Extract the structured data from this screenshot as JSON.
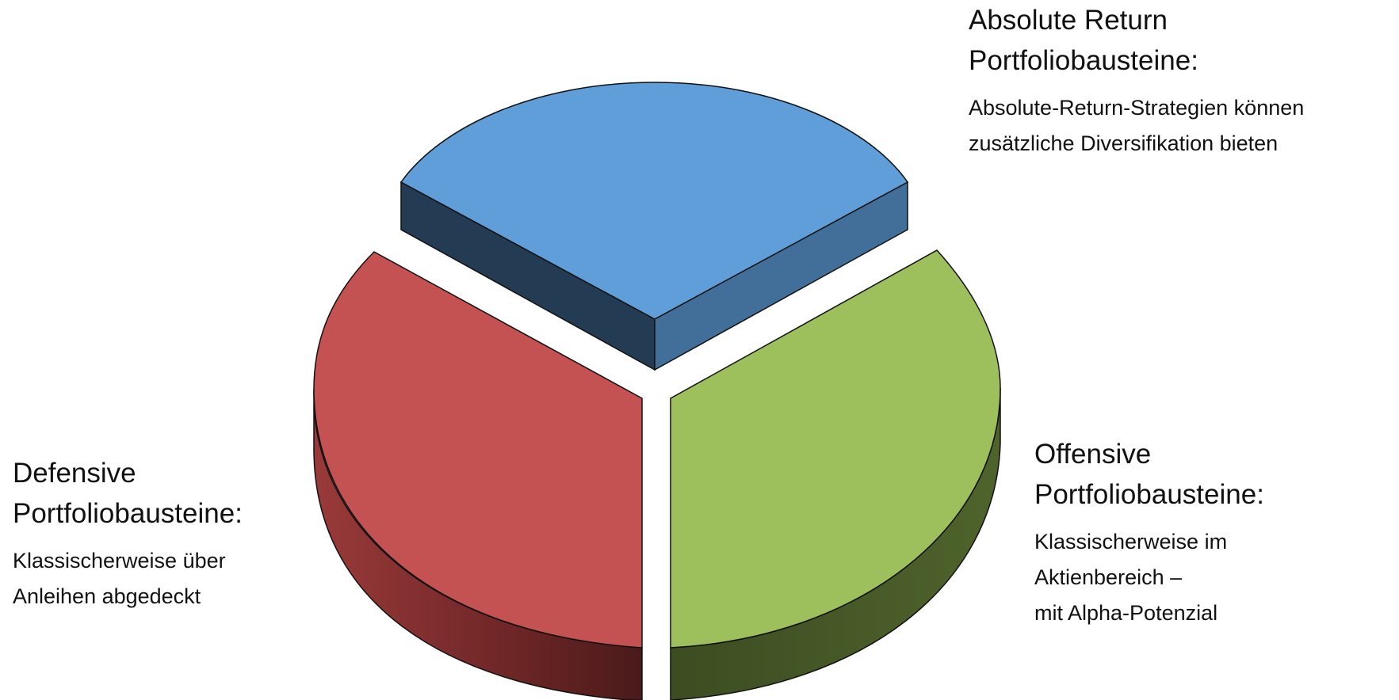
{
  "segments": [
    {
      "key": "absolute",
      "title_line1": "Absolute Return",
      "title_line2": "Portfoliobausteine:",
      "desc_line1": "Absolute-Return-Strategien können",
      "desc_line2": "zusätzliche Diversifikation bieten",
      "desc_line3": "",
      "color_top": "#5f9ed8",
      "color_side": "#426f9a",
      "color_side_dark": "#233c54"
    },
    {
      "key": "offensive",
      "title_line1": "Offensive",
      "title_line2": "Portfoliobausteine:",
      "desc_line1": "Klassischerweise im",
      "desc_line2": "Aktienbereich –",
      "desc_line3": "mit Alpha-Potenzial",
      "color_top": "#9dbf5c",
      "color_side": "#4c5f2a",
      "color_side_dark": "#384a1e"
    },
    {
      "key": "defensive",
      "title_line1": "Defensive",
      "title_line2": "Portfoliobausteine:",
      "desc_line1": "Klassischerweise über",
      "desc_line2": "Anleihen abgedeckt",
      "desc_line3": "",
      "color_top": "#c45252",
      "color_side": "#8e3535",
      "color_side_dark": "#4a1a1a"
    }
  ]
}
